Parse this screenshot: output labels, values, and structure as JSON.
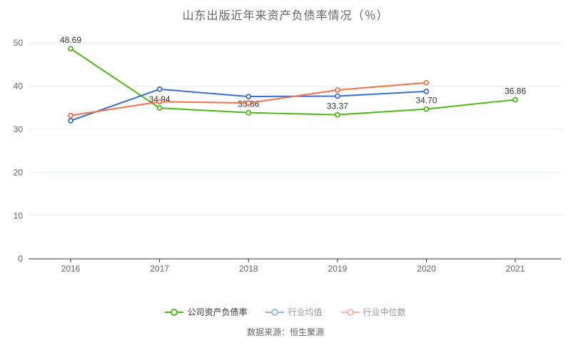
{
  "title": "山东出版近年来资产负债率情况（％）",
  "source": "数据来源：恒生聚源",
  "chart_data": {
    "type": "line",
    "title": "山东出版近年来资产负债率情况（％）",
    "categories": [
      "2016",
      "2017",
      "2018",
      "2019",
      "2020",
      "2021"
    ],
    "series": [
      {
        "key": "company-ratio",
        "name": "公司资产负债率",
        "color": "#4eb819",
        "legend_text_color": "#333333",
        "legend_opacity": 1,
        "values": [
          48.69,
          34.94,
          33.86,
          33.37,
          34.7,
          36.86
        ],
        "labels": [
          "48.69",
          "34.94",
          "33.86",
          "33.37",
          "34.70",
          "36.86"
        ]
      },
      {
        "key": "industry-mean",
        "name": "行业均值",
        "color": "#3b6ed5",
        "legend_text_color": "#999999",
        "legend_opacity": 0.5,
        "values": [
          32.0,
          39.3,
          37.6,
          37.7,
          38.8,
          null
        ],
        "labels": null
      },
      {
        "key": "industry-median",
        "name": "行业中位数",
        "color": "#f2714b",
        "legend_text_color": "#999999",
        "legend_opacity": 0.5,
        "values": [
          33.2,
          36.4,
          36.1,
          39.1,
          40.8,
          null
        ],
        "labels": null
      }
    ],
    "ylim": [
      0,
      50
    ],
    "yticks": [
      0,
      10,
      20,
      30,
      40,
      50
    ],
    "grid": true,
    "legend_position": "bottom",
    "colors": {
      "gridline": "#e8edf4",
      "axis_line": "#333333",
      "tick_label": "#666666",
      "data_label": "#333333",
      "title": "#666666"
    }
  }
}
